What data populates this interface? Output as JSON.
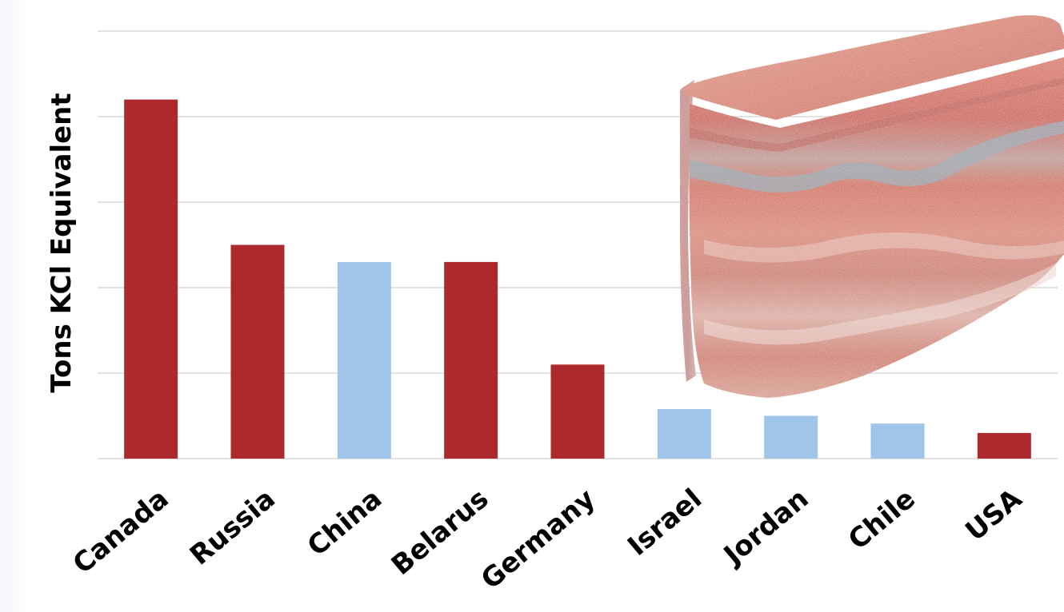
{
  "chart_data": {
    "type": "bar",
    "title": "",
    "xlabel": "",
    "ylabel": "Tons KCl Equivalent",
    "categories": [
      "Canada",
      "Russia",
      "China",
      "Belarus",
      "Germany",
      "Israel",
      "Jordan",
      "Chile",
      "USA"
    ],
    "values": [
      4.2,
      2.5,
      2.3,
      2.3,
      1.1,
      0.58,
      0.5,
      0.41,
      0.3
    ],
    "bar_colors": [
      "#ad2a2c",
      "#ad2a2c",
      "#9fc5e8",
      "#ad2a2c",
      "#ad2a2c",
      "#9fc5e8",
      "#9fc5e8",
      "#9fc5e8",
      "#ad2a2c"
    ],
    "ylim": [
      0,
      5
    ],
    "grid": true,
    "gridline_count": 5,
    "y_tick_labels_shown": false,
    "gridline_color": "#d9d9d9",
    "decoration": "potash-rock-photo"
  }
}
